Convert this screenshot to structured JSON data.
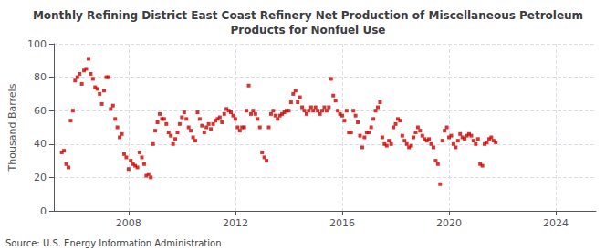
{
  "chart_data": {
    "type": "scatter",
    "title": "Monthly Refining District East Coast Refinery Net Production of Miscellaneous Petroleum\nProducts for Nonfuel Use",
    "ylabel": "Thousand Barrels",
    "annotation": "Source: U.S. Energy Information Administration",
    "color": "#cc0000",
    "marker": "square",
    "grid": true,
    "ylim": [
      0,
      100
    ],
    "yticks": [
      0,
      20,
      40,
      60,
      80,
      100
    ],
    "xlim": [
      2005.2,
      2025.5
    ],
    "xticks": [
      2008,
      2012,
      2016,
      2020,
      2024
    ],
    "x": [
      2005.5,
      2005.5833,
      2005.6667,
      2005.75,
      2005.8333,
      2005.9167,
      2006,
      2006.0833,
      2006.1667,
      2006.25,
      2006.3333,
      2006.4167,
      2006.5,
      2006.5833,
      2006.6667,
      2006.75,
      2006.8333,
      2006.9167,
      2007,
      2007.0833,
      2007.1667,
      2007.25,
      2007.3333,
      2007.4167,
      2007.5,
      2007.5833,
      2007.6667,
      2007.75,
      2007.8333,
      2007.9167,
      2008,
      2008.0833,
      2008.1667,
      2008.25,
      2008.3333,
      2008.4167,
      2008.5,
      2008.5833,
      2008.6667,
      2008.75,
      2008.8333,
      2008.9167,
      2009,
      2009.0833,
      2009.1667,
      2009.25,
      2009.3333,
      2009.4167,
      2009.5,
      2009.5833,
      2009.6667,
      2009.75,
      2009.8333,
      2009.9167,
      2010,
      2010.0833,
      2010.1667,
      2010.25,
      2010.3333,
      2010.4167,
      2010.5,
      2010.5833,
      2010.6667,
      2010.75,
      2010.8333,
      2010.9167,
      2011,
      2011.0833,
      2011.1667,
      2011.25,
      2011.3333,
      2011.4167,
      2011.5,
      2011.5833,
      2011.6667,
      2011.75,
      2011.8333,
      2011.9167,
      2012,
      2012.0833,
      2012.1667,
      2012.25,
      2012.3333,
      2012.4167,
      2012.5,
      2012.5833,
      2012.6667,
      2012.75,
      2012.8333,
      2012.9167,
      2013,
      2013.0833,
      2013.1667,
      2013.25,
      2013.3333,
      2013.4167,
      2013.5,
      2013.5833,
      2013.6667,
      2013.75,
      2013.8333,
      2013.9167,
      2014,
      2014.0833,
      2014.1667,
      2014.25,
      2014.3333,
      2014.4167,
      2014.5,
      2014.5833,
      2014.6667,
      2014.75,
      2014.8333,
      2014.9167,
      2015,
      2015.0833,
      2015.1667,
      2015.25,
      2015.3333,
      2015.4167,
      2015.5,
      2015.5833,
      2015.6667,
      2015.75,
      2015.8333,
      2015.9167,
      2016,
      2016.0833,
      2016.1667,
      2016.25,
      2016.3333,
      2016.4167,
      2016.5,
      2016.5833,
      2016.6667,
      2016.75,
      2016.8333,
      2016.9167,
      2017,
      2017.0833,
      2017.1667,
      2017.25,
      2017.3333,
      2017.4167,
      2017.5,
      2017.5833,
      2017.6667,
      2017.75,
      2017.8333,
      2017.9167,
      2018,
      2018.0833,
      2018.1667,
      2018.25,
      2018.3333,
      2018.4167,
      2018.5,
      2018.5833,
      2018.6667,
      2018.75,
      2018.8333,
      2018.9167,
      2019,
      2019.0833,
      2019.1667,
      2019.25,
      2019.3333,
      2019.4167,
      2019.5,
      2019.5833,
      2019.6667,
      2019.75,
      2019.8333,
      2019.9167,
      2020,
      2020.0833,
      2020.1667,
      2020.25,
      2020.3333,
      2020.4167,
      2020.5,
      2020.5833,
      2020.6667,
      2020.75,
      2020.8333,
      2020.9167,
      2021,
      2021.0833,
      2021.1667,
      2021.25,
      2021.3333,
      2021.4167,
      2021.5,
      2021.5833,
      2021.6667,
      2021.75
    ],
    "values": [
      35,
      36,
      28,
      26,
      54,
      60,
      78,
      80,
      82,
      76,
      84,
      85,
      91,
      82,
      79,
      74,
      73,
      70,
      64,
      72,
      80,
      80,
      61,
      63,
      55,
      50,
      44,
      46,
      34,
      32,
      25,
      30,
      28,
      27,
      26,
      35,
      32,
      28,
      21,
      22,
      20,
      40,
      48,
      53,
      58,
      55,
      55,
      52,
      47,
      45,
      40,
      43,
      47,
      52,
      56,
      59,
      55,
      50,
      48,
      44,
      42,
      59,
      55,
      51,
      47,
      50,
      52,
      49,
      52,
      54,
      55,
      56,
      53,
      58,
      61,
      60,
      59,
      57,
      55,
      50,
      48,
      50,
      50,
      60,
      75,
      58,
      60,
      58,
      55,
      50,
      35,
      32,
      30,
      50,
      58,
      60,
      57,
      55,
      57,
      58,
      59,
      60,
      60,
      65,
      70,
      72,
      65,
      68,
      62,
      60,
      58,
      60,
      62,
      60,
      62,
      60,
      58,
      60,
      62,
      60,
      62,
      79,
      69,
      66,
      60,
      58,
      57,
      54,
      60,
      47,
      47,
      60,
      57,
      53,
      45,
      38,
      44,
      47,
      47,
      50,
      55,
      60,
      62,
      65,
      44,
      40,
      39,
      42,
      40,
      50,
      52,
      55,
      54,
      45,
      42,
      40,
      38,
      39,
      44,
      47,
      50,
      48,
      45,
      43,
      42,
      43,
      40,
      38,
      30,
      28,
      16,
      42,
      48,
      50,
      44,
      45,
      40,
      38,
      42,
      46,
      44,
      43,
      45,
      46,
      45,
      42,
      40,
      43,
      28,
      27,
      40,
      41,
      43,
      44,
      42,
      41
    ]
  }
}
